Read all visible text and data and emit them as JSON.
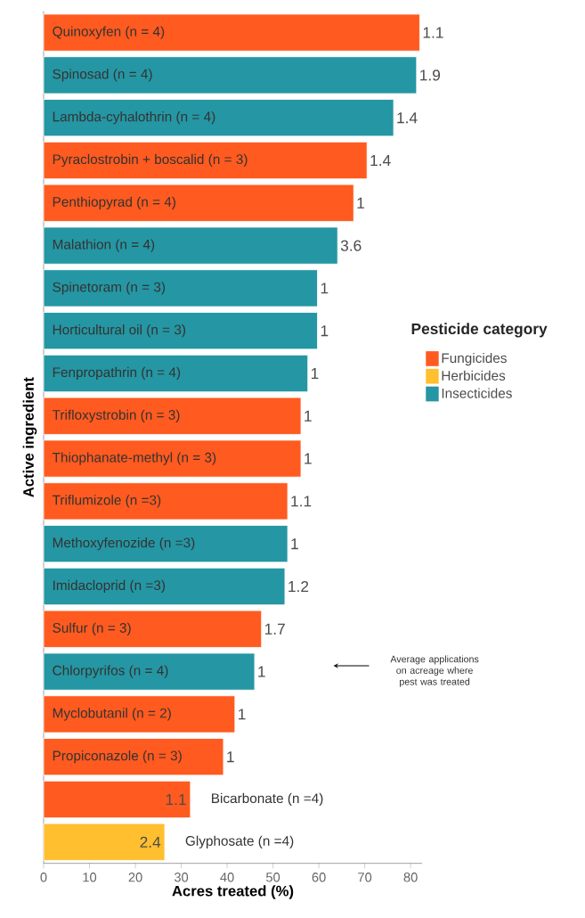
{
  "chart_data": {
    "type": "bar",
    "orientation": "horizontal",
    "xlabel": "Acres treated (%)",
    "ylabel": "Active ingredient",
    "legend_title": "Pesticide category",
    "legend": "right",
    "categories": [
      "Quinoxyfen (n = 4)",
      "Spinosad (n = 4)",
      "Lambda-cyhalothrin (n = 4)",
      "Pyraclostrobin + boscalid (n = 3)",
      "Penthiopyrad (n = 4)",
      "Malathion (n = 4)",
      "Spinetoram (n = 3)",
      "Horticultural oil (n = 3)",
      "Fenpropathrin (n = 4)",
      "Trifloxystrobin (n = 3)",
      "Thiophanate-methyl (n = 3)",
      "Triflumizole (n =3)",
      "Methoxyfenozide (n =3)",
      "Imidacloprid (n =3)",
      "Sulfur (n = 3)",
      "Chlorpyrifos (n = 4)",
      "Myclobutanil (n = 2)",
      "Propiconazole (n = 3)",
      "Bicarbonate (n =4)",
      "Glyphosate (n =4)"
    ],
    "series": [
      {
        "name": "Fungicides",
        "color": "#ff5a1f",
        "values": [
          82.0,
          null,
          null,
          70.5,
          67.6,
          null,
          null,
          null,
          null,
          56.1,
          56.1,
          53.2,
          null,
          null,
          47.5,
          null,
          41.7,
          39.2,
          32.0,
          null
        ]
      },
      {
        "name": "Herbicides",
        "color": "#ffbf2e",
        "values": [
          null,
          null,
          null,
          null,
          null,
          null,
          null,
          null,
          null,
          null,
          null,
          null,
          null,
          null,
          null,
          null,
          null,
          null,
          null,
          26.4
        ]
      },
      {
        "name": "Insecticides",
        "color": "#2596a3",
        "values": [
          null,
          81.3,
          76.3,
          null,
          null,
          64.1,
          59.7,
          59.7,
          57.6,
          null,
          null,
          null,
          53.2,
          52.6,
          null,
          46.0,
          null,
          null,
          null,
          null
        ]
      }
    ],
    "value_labels": [
      "1.1",
      "1.9",
      "1.4",
      "1.4",
      "1",
      "3.6",
      "1",
      "1",
      "1",
      "1",
      "1",
      "1.1",
      "1",
      "1.2",
      "1.7",
      "1",
      "1",
      "1",
      "1.1",
      "2.4"
    ],
    "annotations": [
      "Average applications on acreage where pest was treated"
    ],
    "xlim": [
      0,
      82.5
    ],
    "xticks": [
      0,
      10,
      20,
      30,
      40,
      50,
      60,
      70,
      80
    ],
    "grid": false
  }
}
